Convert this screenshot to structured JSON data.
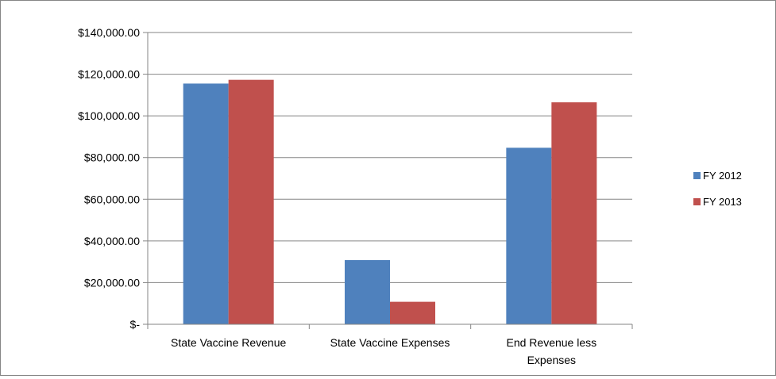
{
  "chart_data": {
    "type": "bar",
    "title": "",
    "xlabel": "",
    "ylabel": "",
    "categories": [
      [
        "State Vaccine Revenue"
      ],
      [
        "State Vaccine Expenses"
      ],
      [
        "End Revenue less",
        "Expenses"
      ]
    ],
    "series": [
      {
        "name": "FY 2012",
        "color": "#4F81BD",
        "values": [
          115500,
          30800,
          84700
        ]
      },
      {
        "name": "FY 2013",
        "color": "#C0504D",
        "values": [
          117300,
          10800,
          106500
        ]
      }
    ],
    "ylim": [
      0,
      140000
    ],
    "yticks": [
      {
        "value": 0,
        "label": "$-"
      },
      {
        "value": 20000,
        "label": "$20,000.00"
      },
      {
        "value": 40000,
        "label": "$40,000.00"
      },
      {
        "value": 60000,
        "label": "$60,000.00"
      },
      {
        "value": 80000,
        "label": "$80,000.00"
      },
      {
        "value": 100000,
        "label": "$100,000.00"
      },
      {
        "value": 120000,
        "label": "$120,000.00"
      },
      {
        "value": 140000,
        "label": "$140,000.00"
      }
    ],
    "grid": true,
    "legend_position": "right",
    "gridline_color": "#868686"
  }
}
